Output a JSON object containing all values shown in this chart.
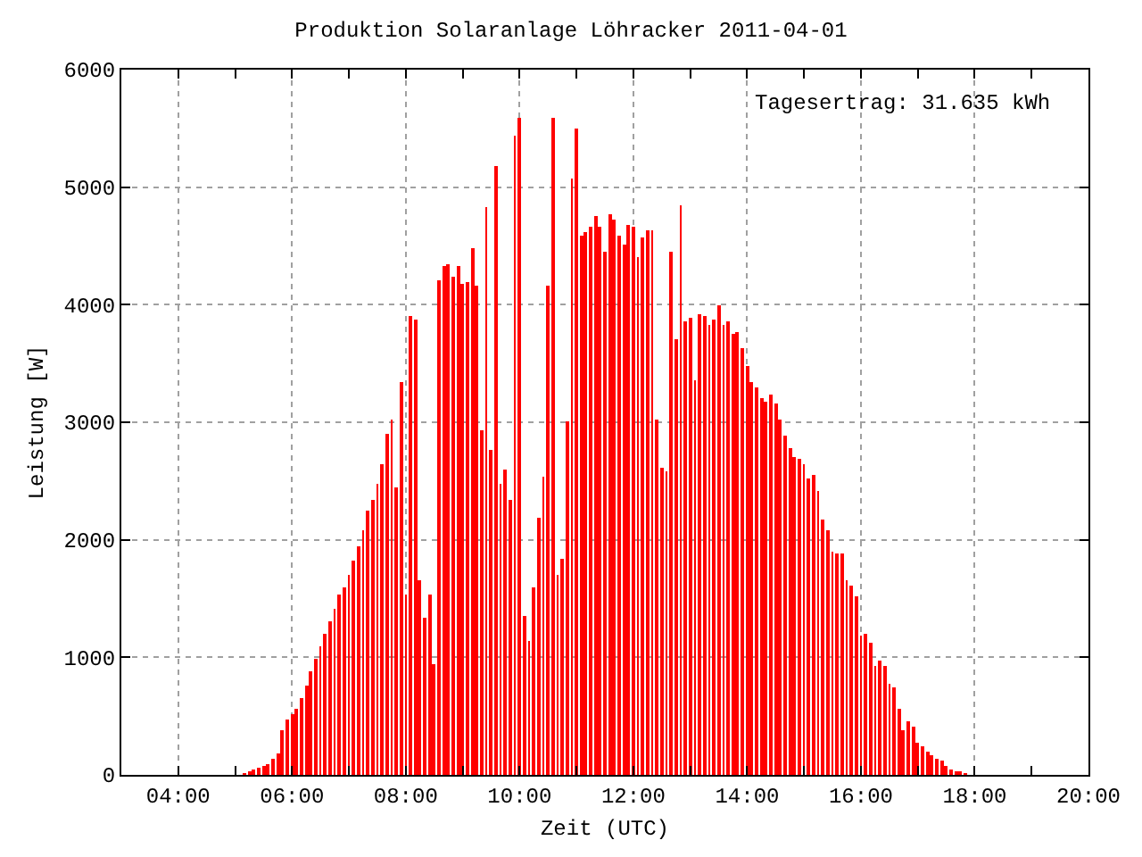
{
  "chart_data": {
    "type": "bar",
    "title": "Produktion Solaranlage Löhracker 2011-04-01",
    "xlabel": "Zeit (UTC)",
    "ylabel": "Leistung [W]",
    "annotations": [
      "Tagesertrag: 31.635 kWh"
    ],
    "x": [
      5.167,
      5.25,
      5.333,
      5.417,
      5.5,
      5.583,
      5.667,
      5.75,
      5.833,
      5.917,
      6.0,
      6.083,
      6.167,
      6.25,
      6.333,
      6.417,
      6.5,
      6.583,
      6.667,
      6.75,
      6.833,
      6.917,
      7.0,
      7.083,
      7.167,
      7.25,
      7.333,
      7.417,
      7.5,
      7.583,
      7.667,
      7.75,
      7.833,
      7.917,
      8.0,
      8.083,
      8.167,
      8.25,
      8.333,
      8.417,
      8.5,
      8.583,
      8.667,
      8.75,
      8.833,
      8.917,
      9.0,
      9.083,
      9.167,
      9.25,
      9.333,
      9.417,
      9.5,
      9.583,
      9.667,
      9.75,
      9.833,
      9.917,
      10.0,
      10.083,
      10.167,
      10.25,
      10.333,
      10.417,
      10.5,
      10.583,
      10.667,
      10.75,
      10.833,
      10.917,
      11.0,
      11.083,
      11.167,
      11.25,
      11.333,
      11.417,
      11.5,
      11.583,
      11.667,
      11.75,
      11.833,
      11.917,
      12.0,
      12.083,
      12.167,
      12.25,
      12.333,
      12.417,
      12.5,
      12.583,
      12.667,
      12.75,
      12.833,
      12.917,
      13.0,
      13.083,
      13.167,
      13.25,
      13.333,
      13.417,
      13.5,
      13.583,
      13.667,
      13.75,
      13.833,
      13.917,
      14.0,
      14.083,
      14.167,
      14.25,
      14.333,
      14.417,
      14.5,
      14.583,
      14.667,
      14.75,
      14.833,
      14.917,
      15.0,
      15.083,
      15.167,
      15.25,
      15.333,
      15.417,
      15.5,
      15.583,
      15.667,
      15.75,
      15.833,
      15.917,
      16.0,
      16.083,
      16.167,
      16.25,
      16.333,
      16.417,
      16.5,
      16.583,
      16.667,
      16.75,
      16.833,
      16.917,
      17.0,
      17.083,
      17.167,
      17.25,
      17.333,
      17.417,
      17.5,
      17.583,
      17.667,
      17.75,
      17.833
    ],
    "values": [
      10,
      30,
      45,
      60,
      75,
      90,
      135,
      180,
      375,
      465,
      510,
      555,
      660,
      765,
      885,
      990,
      1095,
      1200,
      1305,
      1410,
      1530,
      1590,
      1695,
      1830,
      1950,
      2085,
      2250,
      2340,
      2475,
      2640,
      2895,
      3030,
      2445,
      3345,
      1530,
      3900,
      3870,
      1650,
      1335,
      1530,
      945,
      4215,
      4335,
      4350,
      4245,
      4335,
      4170,
      4185,
      4485,
      4155,
      2925,
      4830,
      2760,
      5175,
      2475,
      2595,
      2340,
      5445,
      5595,
      1350,
      1140,
      1590,
      2190,
      2535,
      4155,
      5595,
      1695,
      1845,
      3015,
      5070,
      5505,
      4590,
      4620,
      4665,
      4755,
      4665,
      4455,
      4770,
      4725,
      4590,
      4515,
      4680,
      4665,
      4410,
      4575,
      4635,
      4635,
      3030,
      2610,
      2580,
      4455,
      3705,
      4845,
      3855,
      3885,
      3360,
      3915,
      3900,
      3825,
      3870,
      3990,
      3825,
      3855,
      3750,
      3765,
      3630,
      3480,
      3345,
      3300,
      3210,
      3180,
      3240,
      3165,
      3030,
      2880,
      2775,
      2700,
      2685,
      2640,
      2520,
      2550,
      2415,
      2175,
      2085,
      1905,
      1890,
      1890,
      1650,
      1605,
      1515,
      1185,
      1200,
      1125,
      930,
      975,
      930,
      780,
      750,
      555,
      375,
      450,
      405,
      270,
      240,
      195,
      165,
      135,
      120,
      75,
      45,
      30,
      30,
      15
    ],
    "color": "#ff0000",
    "xlim": [
      3,
      20
    ],
    "xticks": [
      {
        "value": 4,
        "label": "04:00"
      },
      {
        "value": 5,
        "label": null
      },
      {
        "value": 6,
        "label": "06:00"
      },
      {
        "value": 7,
        "label": null
      },
      {
        "value": 8,
        "label": "08:00"
      },
      {
        "value": 9,
        "label": null
      },
      {
        "value": 10,
        "label": "10:00"
      },
      {
        "value": 11,
        "label": null
      },
      {
        "value": 12,
        "label": "12:00"
      },
      {
        "value": 13,
        "label": null
      },
      {
        "value": 14,
        "label": "14:00"
      },
      {
        "value": 15,
        "label": null
      },
      {
        "value": 16,
        "label": "16:00"
      },
      {
        "value": 17,
        "label": null
      },
      {
        "value": 18,
        "label": "18:00"
      },
      {
        "value": 19,
        "label": null
      },
      {
        "value": 20,
        "label": "20:00"
      }
    ],
    "ylim": [
      0,
      6000
    ],
    "yticks": [
      0,
      1000,
      2000,
      3000,
      4000,
      5000,
      6000
    ],
    "grid": true
  }
}
